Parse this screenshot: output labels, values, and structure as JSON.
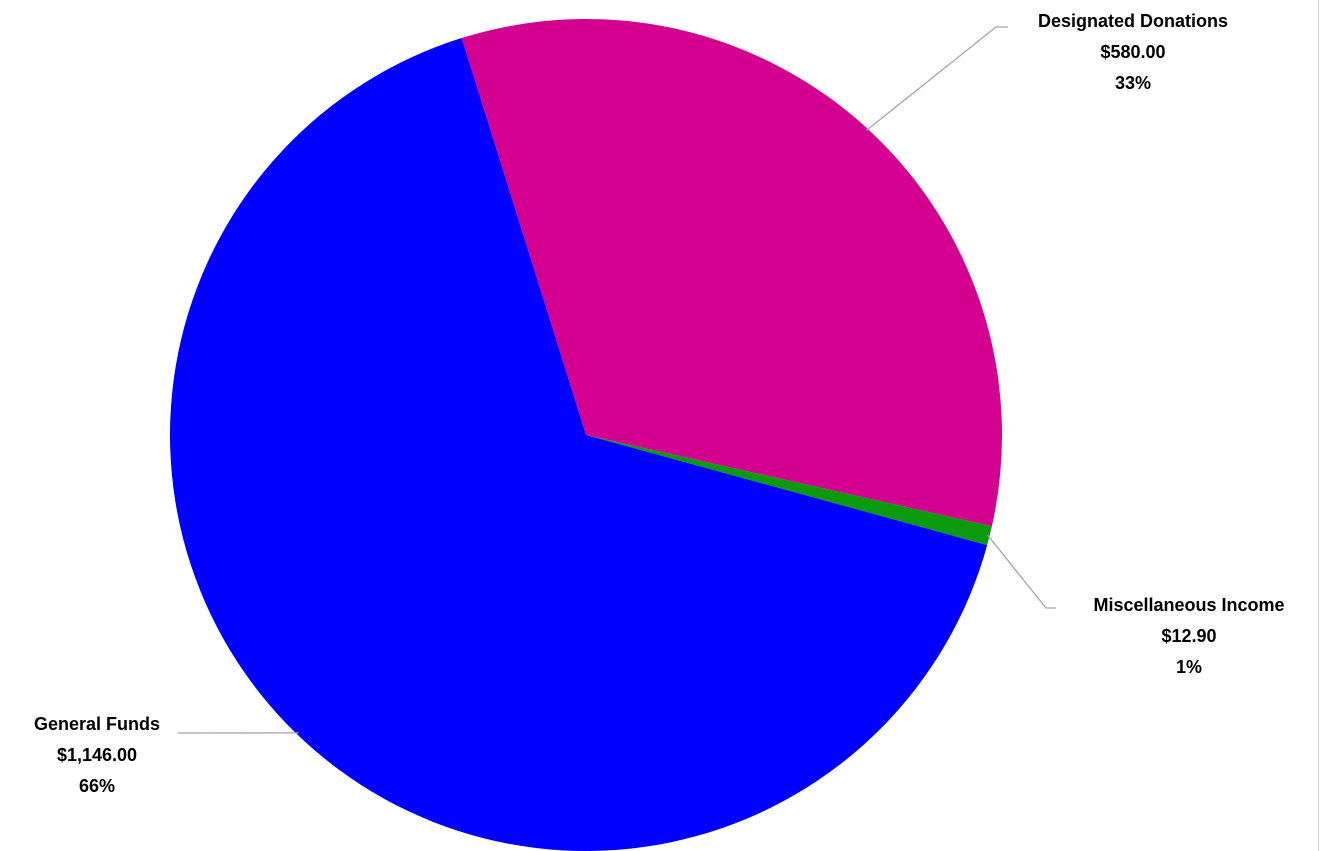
{
  "chart_data": {
    "type": "pie",
    "title": "",
    "start_angle_deg": -17.4,
    "slices": [
      {
        "name": "Designated Donations",
        "value": 580.0,
        "value_label": "$580.00",
        "percent_label": "33%",
        "color": "#d4008f"
      },
      {
        "name": "Miscellaneous Income",
        "value": 12.9,
        "value_label": "$12.90",
        "percent_label": "1%",
        "color": "#0b9a0b"
      },
      {
        "name": "General Funds",
        "value": 1146.0,
        "value_label": "$1,146.00",
        "percent_label": "66%",
        "color": "#0000ff"
      }
    ],
    "legend": "none",
    "label_style": "outside-with-leader-lines"
  }
}
